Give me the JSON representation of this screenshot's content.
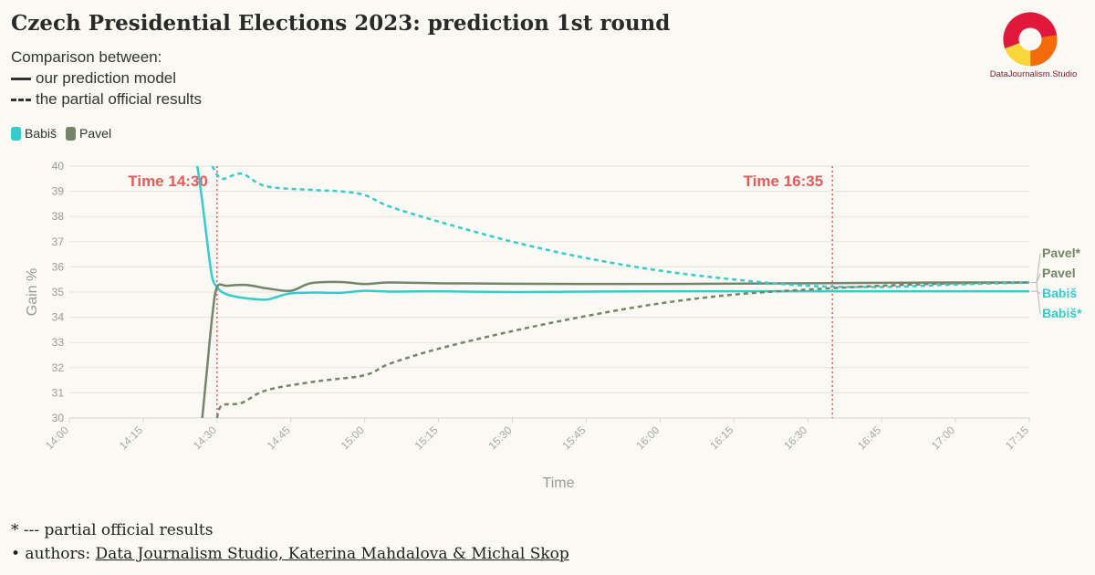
{
  "title": "Czech Presidential Elections 2023: prediction 1st round",
  "subtitle": {
    "intro": "Comparison between:",
    "solid_label": "our prediction model",
    "dotted_label": "the partial official results"
  },
  "legend": [
    {
      "name": "Babiš",
      "color": "#36cbcf"
    },
    {
      "name": "Pavel",
      "color": "#75856a"
    }
  ],
  "logo": {
    "text": "DataJournalism.Studio"
  },
  "footer": {
    "note": "* --- partial official results",
    "authors_prefix": "• authors: ",
    "authors_link": "Data Journalism Studio, Katerina Mahdalova & Michal Skop"
  },
  "chart_data": {
    "type": "line",
    "xlabel": "Time",
    "ylabel": "Gain %",
    "ylim": [
      30,
      40
    ],
    "xlim": [
      "14:00",
      "17:15"
    ],
    "x_ticks": [
      "14:00",
      "14:15",
      "14:30",
      "14:45",
      "15:00",
      "15:15",
      "15:30",
      "15:45",
      "16:00",
      "16:15",
      "16:30",
      "16:45",
      "17:00",
      "17:15"
    ],
    "y_ticks": [
      30,
      31,
      32,
      33,
      34,
      35,
      36,
      37,
      38,
      39,
      40
    ],
    "grid": true,
    "reference_lines": [
      {
        "time": "14:30",
        "label": "Time 14:30",
        "color": "#e45b5b"
      },
      {
        "time": "16:35",
        "label": "Time 16:35",
        "color": "#e45b5b"
      }
    ],
    "series": [
      {
        "name": "Babiš",
        "style": "solid",
        "color": "#36cbcf",
        "end_label": "Babiš",
        "points": [
          [
            "14:26",
            40.0
          ],
          [
            "14:27",
            38.6
          ],
          [
            "14:28",
            37.0
          ],
          [
            "14:29",
            35.6
          ],
          [
            "14:30",
            35.2
          ],
          [
            "14:31",
            35.0
          ],
          [
            "14:33",
            34.85
          ],
          [
            "14:36",
            34.75
          ],
          [
            "14:40",
            34.7
          ],
          [
            "14:42",
            34.8
          ],
          [
            "14:45",
            34.95
          ],
          [
            "14:50",
            34.98
          ],
          [
            "14:55",
            34.97
          ],
          [
            "15:00",
            35.05
          ],
          [
            "15:05",
            35.02
          ],
          [
            "15:15",
            35.03
          ],
          [
            "15:30",
            35.0
          ],
          [
            "15:45",
            35.02
          ],
          [
            "16:00",
            35.03
          ],
          [
            "16:30",
            35.03
          ],
          [
            "17:00",
            35.03
          ],
          [
            "17:15",
            35.03
          ]
        ]
      },
      {
        "name": "Pavel",
        "style": "solid",
        "color": "#75856a",
        "end_label": "Pavel",
        "points": [
          [
            "14:27",
            30.0
          ],
          [
            "14:28",
            32.0
          ],
          [
            "14:29",
            34.0
          ],
          [
            "14:30",
            35.2
          ],
          [
            "14:32",
            35.25
          ],
          [
            "14:36",
            35.28
          ],
          [
            "14:40",
            35.15
          ],
          [
            "14:45",
            35.05
          ],
          [
            "14:49",
            35.35
          ],
          [
            "14:55",
            35.4
          ],
          [
            "15:00",
            35.32
          ],
          [
            "15:05",
            35.38
          ],
          [
            "15:15",
            35.35
          ],
          [
            "15:30",
            35.33
          ],
          [
            "16:00",
            35.32
          ],
          [
            "16:30",
            35.35
          ],
          [
            "17:00",
            35.38
          ],
          [
            "17:15",
            35.38
          ]
        ]
      },
      {
        "name": "Babiš*",
        "style": "dotted",
        "color": "#36cbcf",
        "end_label": "Babiš*",
        "points": [
          [
            "14:29",
            40.0
          ],
          [
            "14:31",
            39.5
          ],
          [
            "14:35",
            39.7
          ],
          [
            "14:40",
            39.2
          ],
          [
            "14:50",
            39.05
          ],
          [
            "14:55",
            39.0
          ],
          [
            "15:00",
            38.85
          ],
          [
            "15:05",
            38.4
          ],
          [
            "15:15",
            37.8
          ],
          [
            "15:30",
            37.0
          ],
          [
            "15:45",
            36.35
          ],
          [
            "16:00",
            35.85
          ],
          [
            "16:15",
            35.5
          ],
          [
            "16:30",
            35.25
          ],
          [
            "16:45",
            35.2
          ],
          [
            "17:00",
            35.3
          ],
          [
            "17:15",
            35.38
          ]
        ]
      },
      {
        "name": "Pavel*",
        "style": "dotted",
        "color": "#75856a",
        "end_label": "Pavel*",
        "points": [
          [
            "14:30",
            30.0
          ],
          [
            "14:31",
            30.5
          ],
          [
            "14:35",
            30.6
          ],
          [
            "14:40",
            31.1
          ],
          [
            "14:50",
            31.45
          ],
          [
            "15:00",
            31.7
          ],
          [
            "15:05",
            32.15
          ],
          [
            "15:15",
            32.75
          ],
          [
            "15:30",
            33.45
          ],
          [
            "15:45",
            34.05
          ],
          [
            "16:00",
            34.55
          ],
          [
            "16:15",
            34.9
          ],
          [
            "16:30",
            35.1
          ],
          [
            "16:45",
            35.25
          ],
          [
            "17:00",
            35.35
          ],
          [
            "17:15",
            35.38
          ]
        ]
      }
    ]
  }
}
